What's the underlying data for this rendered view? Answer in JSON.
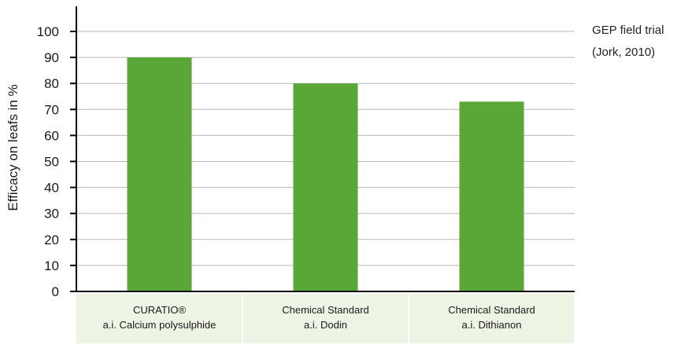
{
  "annotation": {
    "line1": "GEP field trial",
    "line2": "(Jork, 2010)"
  },
  "chart_data": {
    "type": "bar",
    "title": "",
    "xlabel": "",
    "ylabel": "Efficacy on leafs in %",
    "ylim": [
      0,
      100
    ],
    "yticks": [
      0,
      10,
      20,
      30,
      40,
      50,
      60,
      70,
      80,
      90,
      100
    ],
    "grid": true,
    "categories": [
      [
        "CURATIO®",
        "a.i. Calcium polysulphide"
      ],
      [
        "Chemical Standard",
        "a.i. Dodin"
      ],
      [
        "Chemical Standard",
        "a.i. Dithianon"
      ]
    ],
    "values": [
      90,
      80,
      73
    ],
    "colors": {
      "bar": "#5aa636",
      "category_band": "#eef4e4",
      "grid": "#b8b8b8",
      "axis": "#000000"
    }
  }
}
